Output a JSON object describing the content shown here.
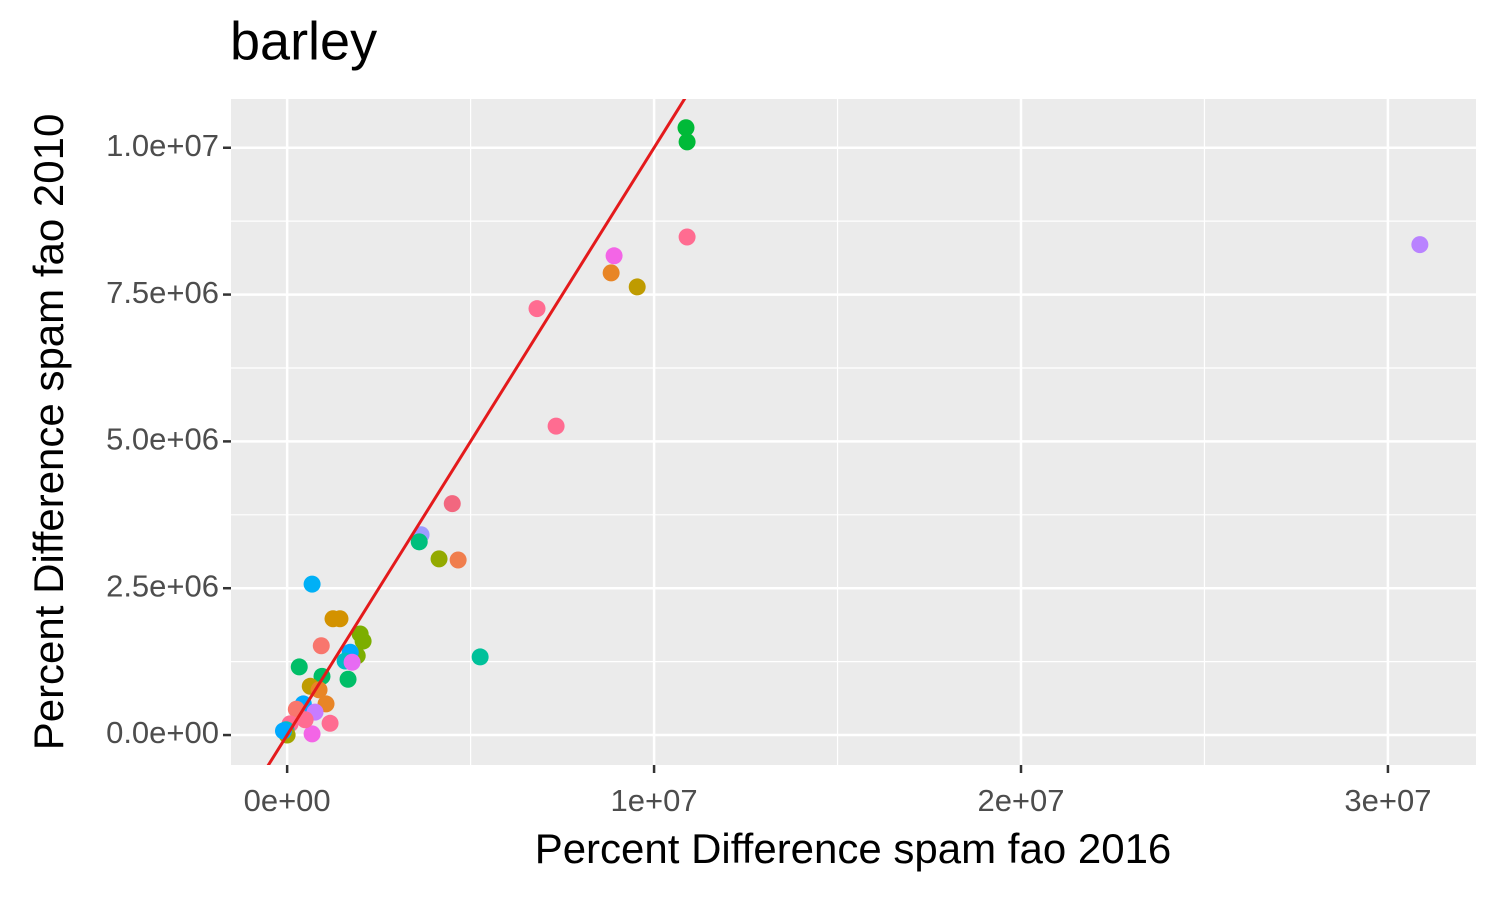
{
  "chart_data": {
    "type": "scatter",
    "title": "barley",
    "xlabel": "Percent Difference spam fao 2016",
    "ylabel": "Percent Difference spam fao 2010",
    "xlim": [
      -1530000,
      32400000
    ],
    "ylim": [
      -510000,
      10830000
    ],
    "xticks": [
      {
        "value": 0,
        "label": "0e+00"
      },
      {
        "value": 10000000,
        "label": "1e+07"
      },
      {
        "value": 20000000,
        "label": "2e+07"
      },
      {
        "value": 30000000,
        "label": "3e+07"
      }
    ],
    "yticks": [
      {
        "value": 0,
        "label": "0.0e+00"
      },
      {
        "value": 2500000,
        "label": "2.5e+06"
      },
      {
        "value": 5000000,
        "label": "5.0e+06"
      },
      {
        "value": 7500000,
        "label": "7.5e+06"
      },
      {
        "value": 10000000,
        "label": "1.0e+07"
      }
    ],
    "grid": true,
    "reference_line": {
      "slope": 1,
      "intercept": 0,
      "color": "#e41a1c"
    },
    "series": [
      {
        "x": [
          10870000,
          10900000,
          10900000,
          30870000,
          8910000,
          8830000,
          9540000,
          6810000,
          7330000,
          4500000,
          3650000,
          3600000,
          4140000,
          4660000,
          680000,
          1250000,
          1440000,
          930000,
          1990000,
          2070000,
          1910000,
          1720000,
          1580000,
          1770000,
          5260000,
          330000,
          1660000,
          950000,
          630000,
          870000,
          1060000,
          440000,
          250000,
          760000,
          1170000,
          680000,
          80000,
          -30000,
          0,
          490000,
          -100000
        ],
        "values": [
          10340000,
          10100000,
          8480000,
          8350000,
          8160000,
          7870000,
          7630000,
          7260000,
          5260000,
          3940000,
          3410000,
          3290000,
          3000000,
          2980000,
          2570000,
          1980000,
          1980000,
          1520000,
          1720000,
          1600000,
          1350000,
          1410000,
          1260000,
          1240000,
          1330000,
          1160000,
          950000,
          1000000,
          830000,
          770000,
          530000,
          530000,
          440000,
          390000,
          200000,
          20000,
          190000,
          90000,
          0,
          260000,
          70000
        ],
        "colors": [
          "#00ba38",
          "#00ba38",
          "#ff6c91",
          "#b983ff",
          "#f365e6",
          "#e88526",
          "#bf9b00",
          "#ff6c91",
          "#ff6c91",
          "#f2677f",
          "#9e9bff",
          "#00bf7d",
          "#93aa00",
          "#f07e4d",
          "#00b0f6",
          "#d39200",
          "#d39200",
          "#f8766d",
          "#7cae00",
          "#7cae00",
          "#7cae00",
          "#00a9ff",
          "#00bfc4",
          "#e76bf3",
          "#00c19a",
          "#00be67",
          "#00be67",
          "#00be67",
          "#bf9b00",
          "#e88526",
          "#e88526",
          "#00a9ff",
          "#f8766d",
          "#c77cff",
          "#ff6c91",
          "#f365e6",
          "#ff6c91",
          "#00bfc4",
          "#a3a500",
          "#ff6c91",
          "#00a9ff"
        ]
      }
    ]
  }
}
